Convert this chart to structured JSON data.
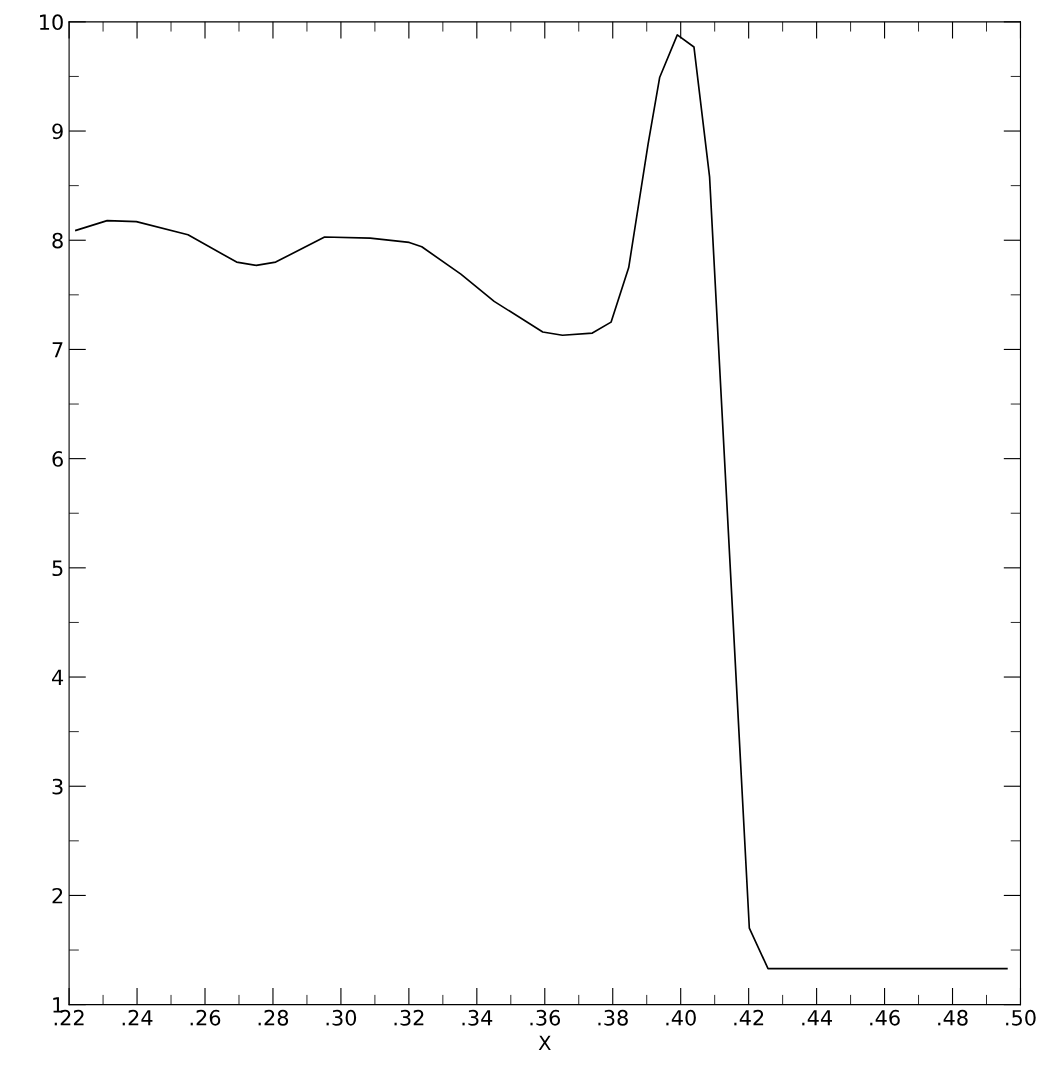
{
  "chart_data": {
    "type": "line",
    "xlabel": "X",
    "x": [
      0.222,
      0.2312,
      0.2398,
      0.255,
      0.2693,
      0.2751,
      0.2808,
      0.2952,
      0.3086,
      0.3201,
      0.3238,
      0.3353,
      0.3451,
      0.3594,
      0.3652,
      0.374,
      0.3795,
      0.3847,
      0.3904,
      0.3938,
      0.399,
      0.4039,
      0.4085,
      0.4202,
      0.4257,
      0.496
    ],
    "series": [
      {
        "color": "#000000",
        "values": [
          8.09,
          8.18,
          8.17,
          8.05,
          7.8,
          7.77,
          7.8,
          8.03,
          8.02,
          7.98,
          7.94,
          7.69,
          7.44,
          7.16,
          7.13,
          7.15,
          7.25,
          7.75,
          8.88,
          9.49,
          9.88,
          9.77,
          8.58,
          1.7,
          1.33,
          1.33
        ]
      }
    ],
    "xlim": [
      0.22,
      0.5
    ],
    "ylim": [
      1,
      10
    ],
    "xticks": [
      {
        "value": 0.22,
        "label": ".22"
      },
      {
        "value": 0.24,
        "label": ".24"
      },
      {
        "value": 0.26,
        "label": ".26"
      },
      {
        "value": 0.28,
        "label": ".28"
      },
      {
        "value": 0.3,
        "label": ".30"
      },
      {
        "value": 0.32,
        "label": ".32"
      },
      {
        "value": 0.34,
        "label": ".34"
      },
      {
        "value": 0.36,
        "label": ".36"
      },
      {
        "value": 0.38,
        "label": ".38"
      },
      {
        "value": 0.4,
        "label": ".40"
      },
      {
        "value": 0.42,
        "label": ".42"
      },
      {
        "value": 0.44,
        "label": ".44"
      },
      {
        "value": 0.46,
        "label": ".46"
      },
      {
        "value": 0.48,
        "label": ".48"
      },
      {
        "value": 0.5,
        "label": ".50"
      }
    ],
    "yticks": [
      1,
      2,
      3,
      4,
      5,
      6,
      7,
      8,
      9,
      10
    ],
    "grid": false,
    "marker": "none",
    "line_style": "solid"
  }
}
